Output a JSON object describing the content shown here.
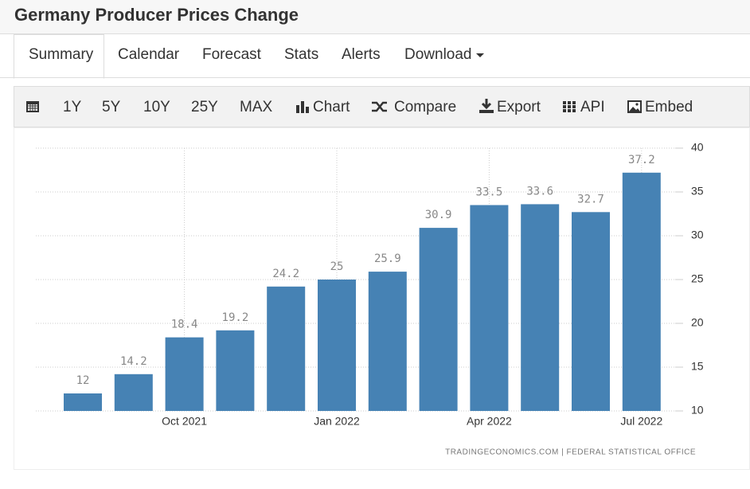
{
  "header": {
    "title": "Germany Producer Prices Change"
  },
  "tabs": [
    "Summary",
    "Calendar",
    "Forecast",
    "Stats",
    "Alerts",
    "Download"
  ],
  "toolbar": [
    "1Y",
    "5Y",
    "10Y",
    "25Y",
    "MAX",
    "Chart",
    "Compare",
    "Export",
    "API",
    "Embed"
  ],
  "chart_data": {
    "type": "bar",
    "categories": [
      null,
      null,
      "Oct 2021",
      null,
      null,
      "Jan 2022",
      null,
      null,
      "Apr 2022",
      null,
      null,
      "Jul 2022"
    ],
    "values": [
      12,
      14.2,
      18.4,
      19.2,
      24.2,
      25,
      25.9,
      30.9,
      33.5,
      33.6,
      32.7,
      37.2
    ],
    "color": "#4682b4",
    "ylim": [
      10,
      40
    ],
    "yticks": [
      10,
      15,
      20,
      25,
      30,
      35,
      40
    ],
    "grid": true,
    "source": "TRADINGECONOMICS.COM | FEDERAL STATISTICAL OFFICE"
  }
}
